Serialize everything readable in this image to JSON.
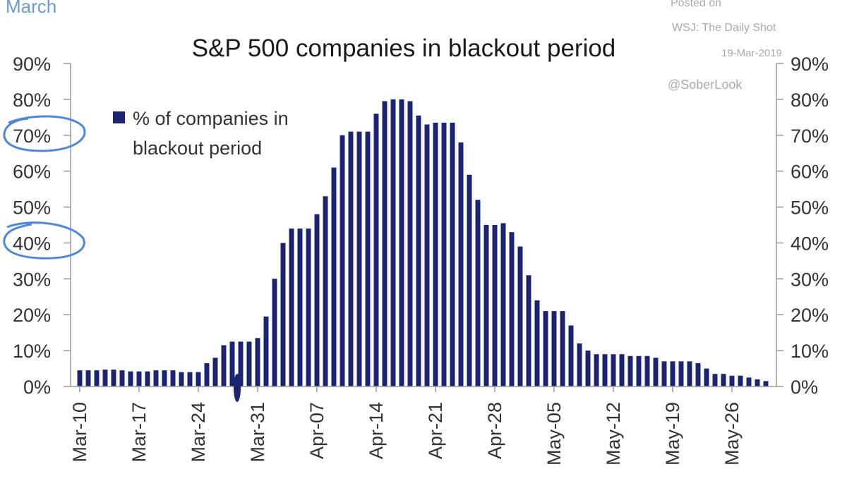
{
  "header": {
    "tag": "March",
    "source_line_1": "Posted on",
    "source_line_2": "WSJ: The Daily Shot",
    "source_date": "19-Mar-2019",
    "handle": "@SoberLook"
  },
  "colors": {
    "bar": "#1b2471",
    "annotation": "#4f86d8",
    "tag": "#6a9bd0"
  },
  "chart_data": {
    "type": "bar",
    "title": "S&P 500 companies in blackout period",
    "legend": {
      "label_line_1": "% of companies in",
      "label_line_2": "blackout period",
      "placement": "top-left"
    },
    "series": [
      {
        "name": "% of companies in blackout period",
        "values": [
          4.5,
          4.5,
          4.5,
          4.7,
          4.7,
          4.5,
          4.2,
          4.2,
          4.2,
          4.5,
          4.5,
          4.5,
          4,
          4,
          4,
          6.5,
          8,
          11.5,
          12.5,
          12.5,
          12.5,
          13.5,
          19.5,
          30,
          40,
          44,
          44,
          44,
          48,
          53,
          61,
          70,
          71,
          71,
          71,
          76,
          79.5,
          80,
          80,
          79.5,
          75.5,
          73,
          73.5,
          73.5,
          73.5,
          68,
          59,
          52,
          45,
          45,
          45.5,
          43,
          39,
          31,
          24,
          21,
          21,
          21,
          17,
          12,
          10,
          9,
          9,
          9,
          9,
          8.5,
          8.5,
          8.5,
          8,
          7,
          7,
          7,
          7,
          6.5,
          5,
          3.5,
          3.5,
          3,
          3,
          2.5,
          2,
          1.5
        ]
      }
    ],
    "x_ticks": [
      "Mar-10",
      "Mar-17",
      "Mar-24",
      "Mar-31",
      "Apr-07",
      "Apr-14",
      "Apr-21",
      "Apr-28",
      "May-05",
      "May-12",
      "May-19",
      "May-26"
    ],
    "y_ticks": [
      "0%",
      "10%",
      "20%",
      "30%",
      "40%",
      "50%",
      "60%",
      "70%",
      "80%",
      "90%"
    ],
    "ylim": [
      0,
      90
    ],
    "y_axes": "left and right",
    "grid": false,
    "annotations": [
      "circled 70%",
      "circled 40%"
    ]
  }
}
